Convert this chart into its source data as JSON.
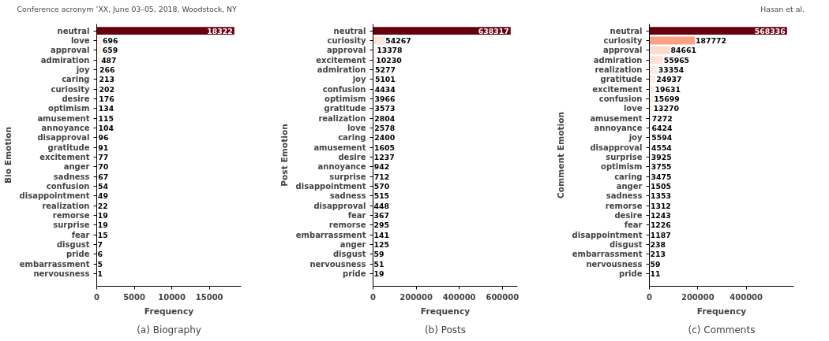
{
  "chart_data": [
    {
      "type": "bar",
      "orientation": "horizontal",
      "title": "(a) Biography",
      "xlabel": "Frequency",
      "ylabel": "Bio Emotion",
      "annotations": [
        "Conference acronym ’XX, June 03–05, 2018, Woodstock, NY"
      ],
      "categories": [
        "neutral",
        "love",
        "approval",
        "admiration",
        "joy",
        "caring",
        "curiosity",
        "desire",
        "optimism",
        "amusement",
        "annoyance",
        "disapproval",
        "gratitude",
        "excitement",
        "anger",
        "sadness",
        "confusion",
        "disappointment",
        "realization",
        "remorse",
        "surprise",
        "fear",
        "disgust",
        "pride",
        "embarrassment",
        "nervousness"
      ],
      "values": [
        18322,
        696,
        659,
        487,
        266,
        213,
        202,
        176,
        134,
        115,
        104,
        96,
        91,
        77,
        70,
        67,
        54,
        49,
        22,
        19,
        19,
        15,
        7,
        6,
        5,
        1
      ],
      "colors": [
        "#67000d",
        "#ffeee7",
        "#ffeee7",
        "#fff0e9",
        "#fff3ed",
        "#fff3ee",
        "#fff3ee",
        "#fff4ee",
        "#fff4ef",
        "#fff4ef",
        "#fff4ef",
        "#fff4ef",
        "#fff4ef",
        "#fff5f0",
        "#fff5f0",
        "#fff5f0",
        "#fff5f0",
        "#fff5f0",
        "#fff5f0",
        "#fff5f0",
        "#fff5f0",
        "#fff5f0",
        "#fff5f0",
        "#fff5f0",
        "#fff5f0",
        "#fff5f0"
      ],
      "xlim": [
        0,
        19238
      ],
      "xticks": [
        0,
        5000,
        10000,
        15000
      ],
      "data_labels": true,
      "grid": false
    },
    {
      "type": "bar",
      "orientation": "horizontal",
      "title": "(b) Posts",
      "xlabel": "Frequency",
      "ylabel": "Post Emotion",
      "categories": [
        "neutral",
        "curiosity",
        "approval",
        "excitement",
        "admiration",
        "joy",
        "confusion",
        "optimism",
        "gratitude",
        "realization",
        "love",
        "caring",
        "amusement",
        "desire",
        "annoyance",
        "surprise",
        "disappointment",
        "sadness",
        "disapproval",
        "fear",
        "remorse",
        "embarrassment",
        "anger",
        "disgust",
        "nervousness",
        "pride"
      ],
      "values": [
        638317,
        54267,
        13378,
        10230,
        5277,
        5101,
        4434,
        3966,
        3573,
        2804,
        2578,
        2400,
        1605,
        1237,
        942,
        712,
        570,
        515,
        448,
        367,
        295,
        141,
        125,
        59,
        51,
        19
      ],
      "colors": [
        "#67000d",
        "#fee6da",
        "#fff1eb",
        "#fff2ec",
        "#fff4ee",
        "#fff4ee",
        "#fff4ee",
        "#fff4ef",
        "#fff4ef",
        "#fff4ef",
        "#fff4ef",
        "#fff4ef",
        "#fff5f0",
        "#fff5f0",
        "#fff5f0",
        "#fff5f0",
        "#fff5f0",
        "#fff5f0",
        "#fff5f0",
        "#fff5f0",
        "#fff5f0",
        "#fff5f0",
        "#fff5f0",
        "#fff5f0",
        "#fff5f0",
        "#fff5f0"
      ],
      "xlim": [
        0,
        670233
      ],
      "xticks": [
        0,
        200000,
        400000,
        600000
      ],
      "data_labels": true,
      "grid": false
    },
    {
      "type": "bar",
      "orientation": "horizontal",
      "title": "(c) Comments",
      "xlabel": "Frequency",
      "ylabel": "Comment Emotion",
      "annotations": [
        "Hasan et al."
      ],
      "categories": [
        "neutral",
        "curiosity",
        "approval",
        "admiration",
        "realization",
        "gratitude",
        "excitement",
        "confusion",
        "love",
        "amusement",
        "annoyance",
        "joy",
        "disapproval",
        "surprise",
        "optimism",
        "caring",
        "anger",
        "sadness",
        "remorse",
        "desire",
        "fear",
        "disappointment",
        "disgust",
        "embarrassment",
        "nervousness",
        "pride"
      ],
      "values": [
        568336,
        187772,
        84661,
        55965,
        33354,
        24937,
        19631,
        15699,
        13270,
        7272,
        6424,
        5594,
        4554,
        3925,
        3755,
        3475,
        1505,
        1353,
        1312,
        1243,
        1226,
        1187,
        238,
        213,
        59,
        11
      ],
      "colors": [
        "#67000d",
        "#fca183",
        "#fedacb",
        "#fee4d8",
        "#ffebe2",
        "#feede5",
        "#ffeee7",
        "#ffefe8",
        "#fff0ea",
        "#fff2ec",
        "#fff3ed",
        "#fff3ed",
        "#fff3ee",
        "#fff4ee",
        "#fff4ee",
        "#fff4ee",
        "#fff5f0",
        "#fff5f0",
        "#fff5f0",
        "#fff5f0",
        "#fff5f0",
        "#fff5f0",
        "#fff5f0",
        "#fff5f0",
        "#fff5f0",
        "#fff5f0"
      ],
      "xlim": [
        0,
        596753
      ],
      "xticks": [
        0,
        200000,
        400000
      ],
      "data_labels": true,
      "grid": false
    }
  ]
}
